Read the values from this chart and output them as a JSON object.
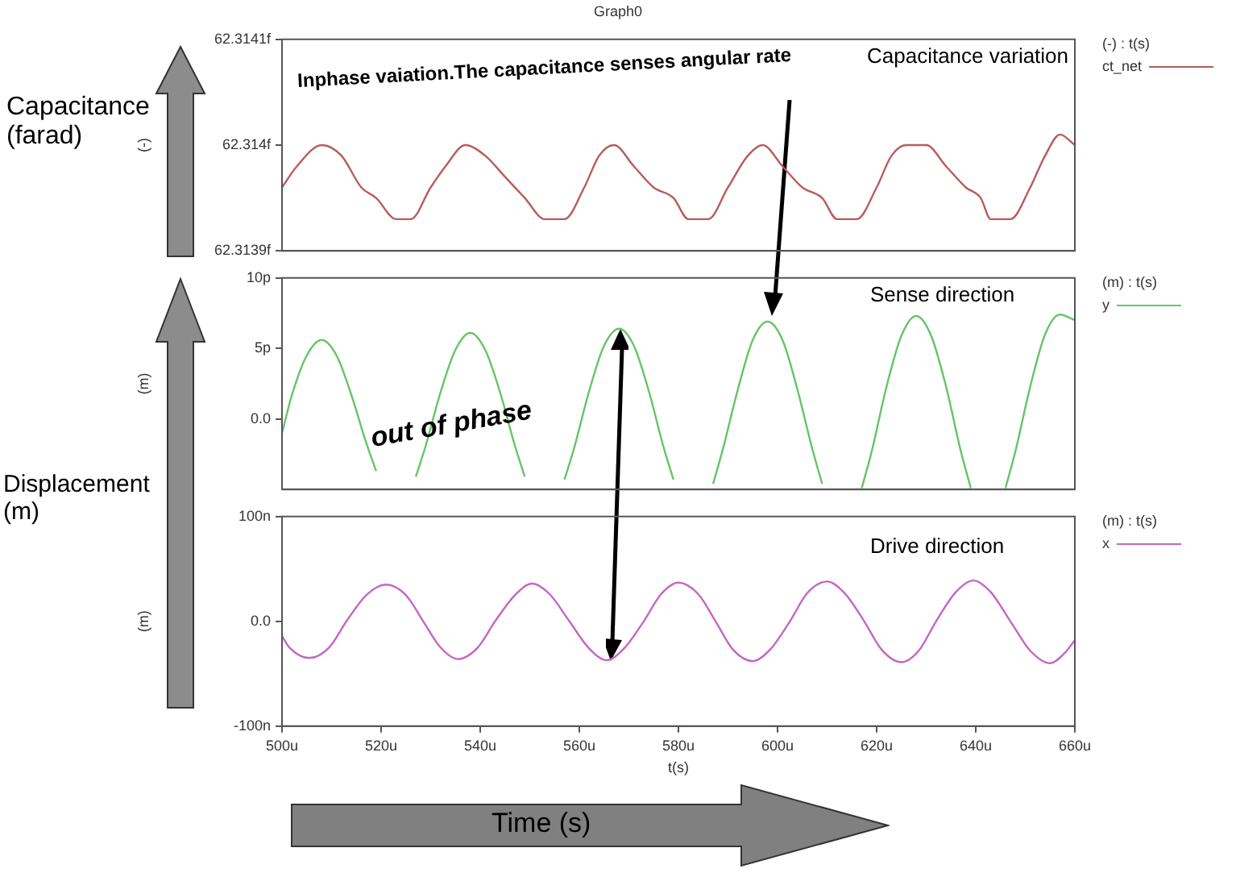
{
  "chart_data": [
    {
      "type": "line",
      "title": "Graph0",
      "ylabel": "(-)",
      "legend_title": "(-) : t(s)",
      "legend": "right",
      "grid": false,
      "tick_labels": "y",
      "marker": "none",
      "annotations": [
        "Capacitance (farad)",
        "Capacitance variation",
        "Inphase vaiation.The capacitance senses angular rate"
      ],
      "xlim": [
        500,
        660
      ],
      "ylim": [
        62.3139,
        62.3141
      ],
      "yticks": [
        {
          "value": 62.3139,
          "label": "62.3139f"
        },
        {
          "value": 62.314,
          "label": "62.314f"
        },
        {
          "value": 62.3141,
          "label": "62.3141f"
        }
      ],
      "x": [
        500,
        503,
        508,
        512,
        516,
        519,
        523,
        526,
        530,
        533,
        537,
        541,
        545,
        549,
        553,
        557,
        561,
        564,
        567,
        571,
        575,
        579,
        582,
        586,
        590,
        594,
        597,
        601,
        605,
        609,
        612,
        616,
        620,
        623,
        626,
        630,
        634,
        638,
        641,
        643,
        647,
        651,
        654,
        657,
        660
      ],
      "series": [
        {
          "name": "ct_net",
          "color": "#b85c5c",
          "values": [
            62.31396,
            62.31398,
            62.314,
            62.31399,
            62.31396,
            62.31395,
            62.31393,
            62.31393,
            62.31396,
            62.31398,
            62.314,
            62.31399,
            62.31397,
            62.31395,
            62.31393,
            62.31393,
            62.31396,
            62.31399,
            62.314,
            62.31398,
            62.31396,
            62.31395,
            62.31393,
            62.31393,
            62.31396,
            62.31399,
            62.314,
            62.31398,
            62.31396,
            62.31395,
            62.31393,
            62.31393,
            62.31396,
            62.31399,
            62.314,
            62.314,
            62.31398,
            62.31396,
            62.31395,
            62.31393,
            62.31393,
            62.31396,
            62.31399,
            62.31401,
            62.314
          ]
        }
      ]
    },
    {
      "type": "line",
      "ylabel": "(m)",
      "legend_title": "(m) : t(s)",
      "legend": "right",
      "grid": false,
      "tick_labels": "y",
      "marker": "none",
      "annotations": [
        "Sense direction",
        "out of phase",
        "Displacement (m)"
      ],
      "xlim": [
        500,
        660
      ],
      "ylim": [
        -5,
        10
      ],
      "yticks": [
        {
          "value": 0,
          "label": "0.0"
        },
        {
          "value": 5,
          "label": "5p"
        },
        {
          "value": 10,
          "label": "10p"
        }
      ],
      "x": [
        500,
        502,
        505,
        508,
        511,
        514,
        517,
        519,
        523,
        527,
        529,
        532,
        535,
        538,
        541,
        544,
        547,
        549,
        553,
        557,
        559,
        562,
        565,
        568,
        571,
        574,
        577,
        579,
        583,
        587,
        589,
        592,
        595,
        598,
        601,
        604,
        607,
        609,
        613,
        617,
        619,
        622,
        625,
        628,
        631,
        634,
        637,
        639,
        643,
        646,
        648,
        651,
        654,
        657,
        660
      ],
      "series": [
        {
          "name": "y",
          "color": "#66c466",
          "values": [
            -1.0,
            1.7,
            4.5,
            5.6,
            4.5,
            1.7,
            -1.7,
            -3.7,
            null,
            -4.1,
            -1.9,
            1.9,
            4.9,
            6.1,
            4.9,
            1.9,
            -1.9,
            -4.1,
            null,
            -4.3,
            -2.0,
            2.0,
            5.2,
            6.4,
            5.2,
            2.0,
            -2.0,
            -4.3,
            null,
            -4.6,
            -2.1,
            2.1,
            5.6,
            6.9,
            5.6,
            2.1,
            -2.1,
            -4.6,
            null,
            -4.9,
            -2.3,
            2.3,
            5.9,
            7.3,
            5.9,
            2.3,
            -2.3,
            -4.9,
            null,
            -4.9,
            -2.3,
            2.3,
            6.0,
            7.4,
            7.0
          ]
        }
      ]
    },
    {
      "type": "line",
      "ylabel": "(m)",
      "xlabel": "t(s)",
      "legend_title": "(m) : t(s)",
      "legend": "right",
      "grid": false,
      "marker": "none",
      "annotations": [
        "Drive direction",
        "Time (s)"
      ],
      "xlim": [
        500,
        660
      ],
      "xticks": [
        {
          "value": 500,
          "label": "500u"
        },
        {
          "value": 520,
          "label": "520u"
        },
        {
          "value": 540,
          "label": "540u"
        },
        {
          "value": 560,
          "label": "560u"
        },
        {
          "value": 580,
          "label": "580u"
        },
        {
          "value": 600,
          "label": "600u"
        },
        {
          "value": 620,
          "label": "620u"
        },
        {
          "value": 640,
          "label": "640u"
        },
        {
          "value": 660,
          "label": "660u"
        }
      ],
      "ylim": [
        -100,
        100
      ],
      "yticks": [
        {
          "value": -100,
          "label": "-100n"
        },
        {
          "value": 0,
          "label": "0.0"
        },
        {
          "value": 100,
          "label": "100n"
        }
      ],
      "x": [
        500,
        501.5,
        505.5,
        509.5,
        513,
        517,
        521,
        525,
        528.5,
        532,
        535.5,
        539.5,
        543,
        547,
        550.5,
        554,
        558,
        562,
        565.5,
        569,
        573,
        576.5,
        580,
        584,
        587.5,
        591,
        595,
        598.5,
        602.5,
        606,
        610,
        613.5,
        617.5,
        621,
        625,
        628.5,
        632,
        636,
        639.5,
        643,
        647,
        651,
        655,
        658,
        660
      ],
      "series": [
        {
          "name": "x",
          "color": "#c466c4",
          "values": [
            -14,
            -25,
            -35,
            -25,
            0,
            25,
            35,
            25,
            0,
            -25,
            -36,
            -25,
            0,
            25,
            36,
            26,
            0,
            -26,
            -37,
            -26,
            0,
            26,
            37,
            26,
            0,
            -27,
            -38,
            -27,
            0,
            27,
            38,
            27,
            0,
            -27,
            -39,
            -28,
            0,
            28,
            39,
            28,
            0,
            -28,
            -40,
            -30,
            -18
          ]
        }
      ]
    }
  ]
}
